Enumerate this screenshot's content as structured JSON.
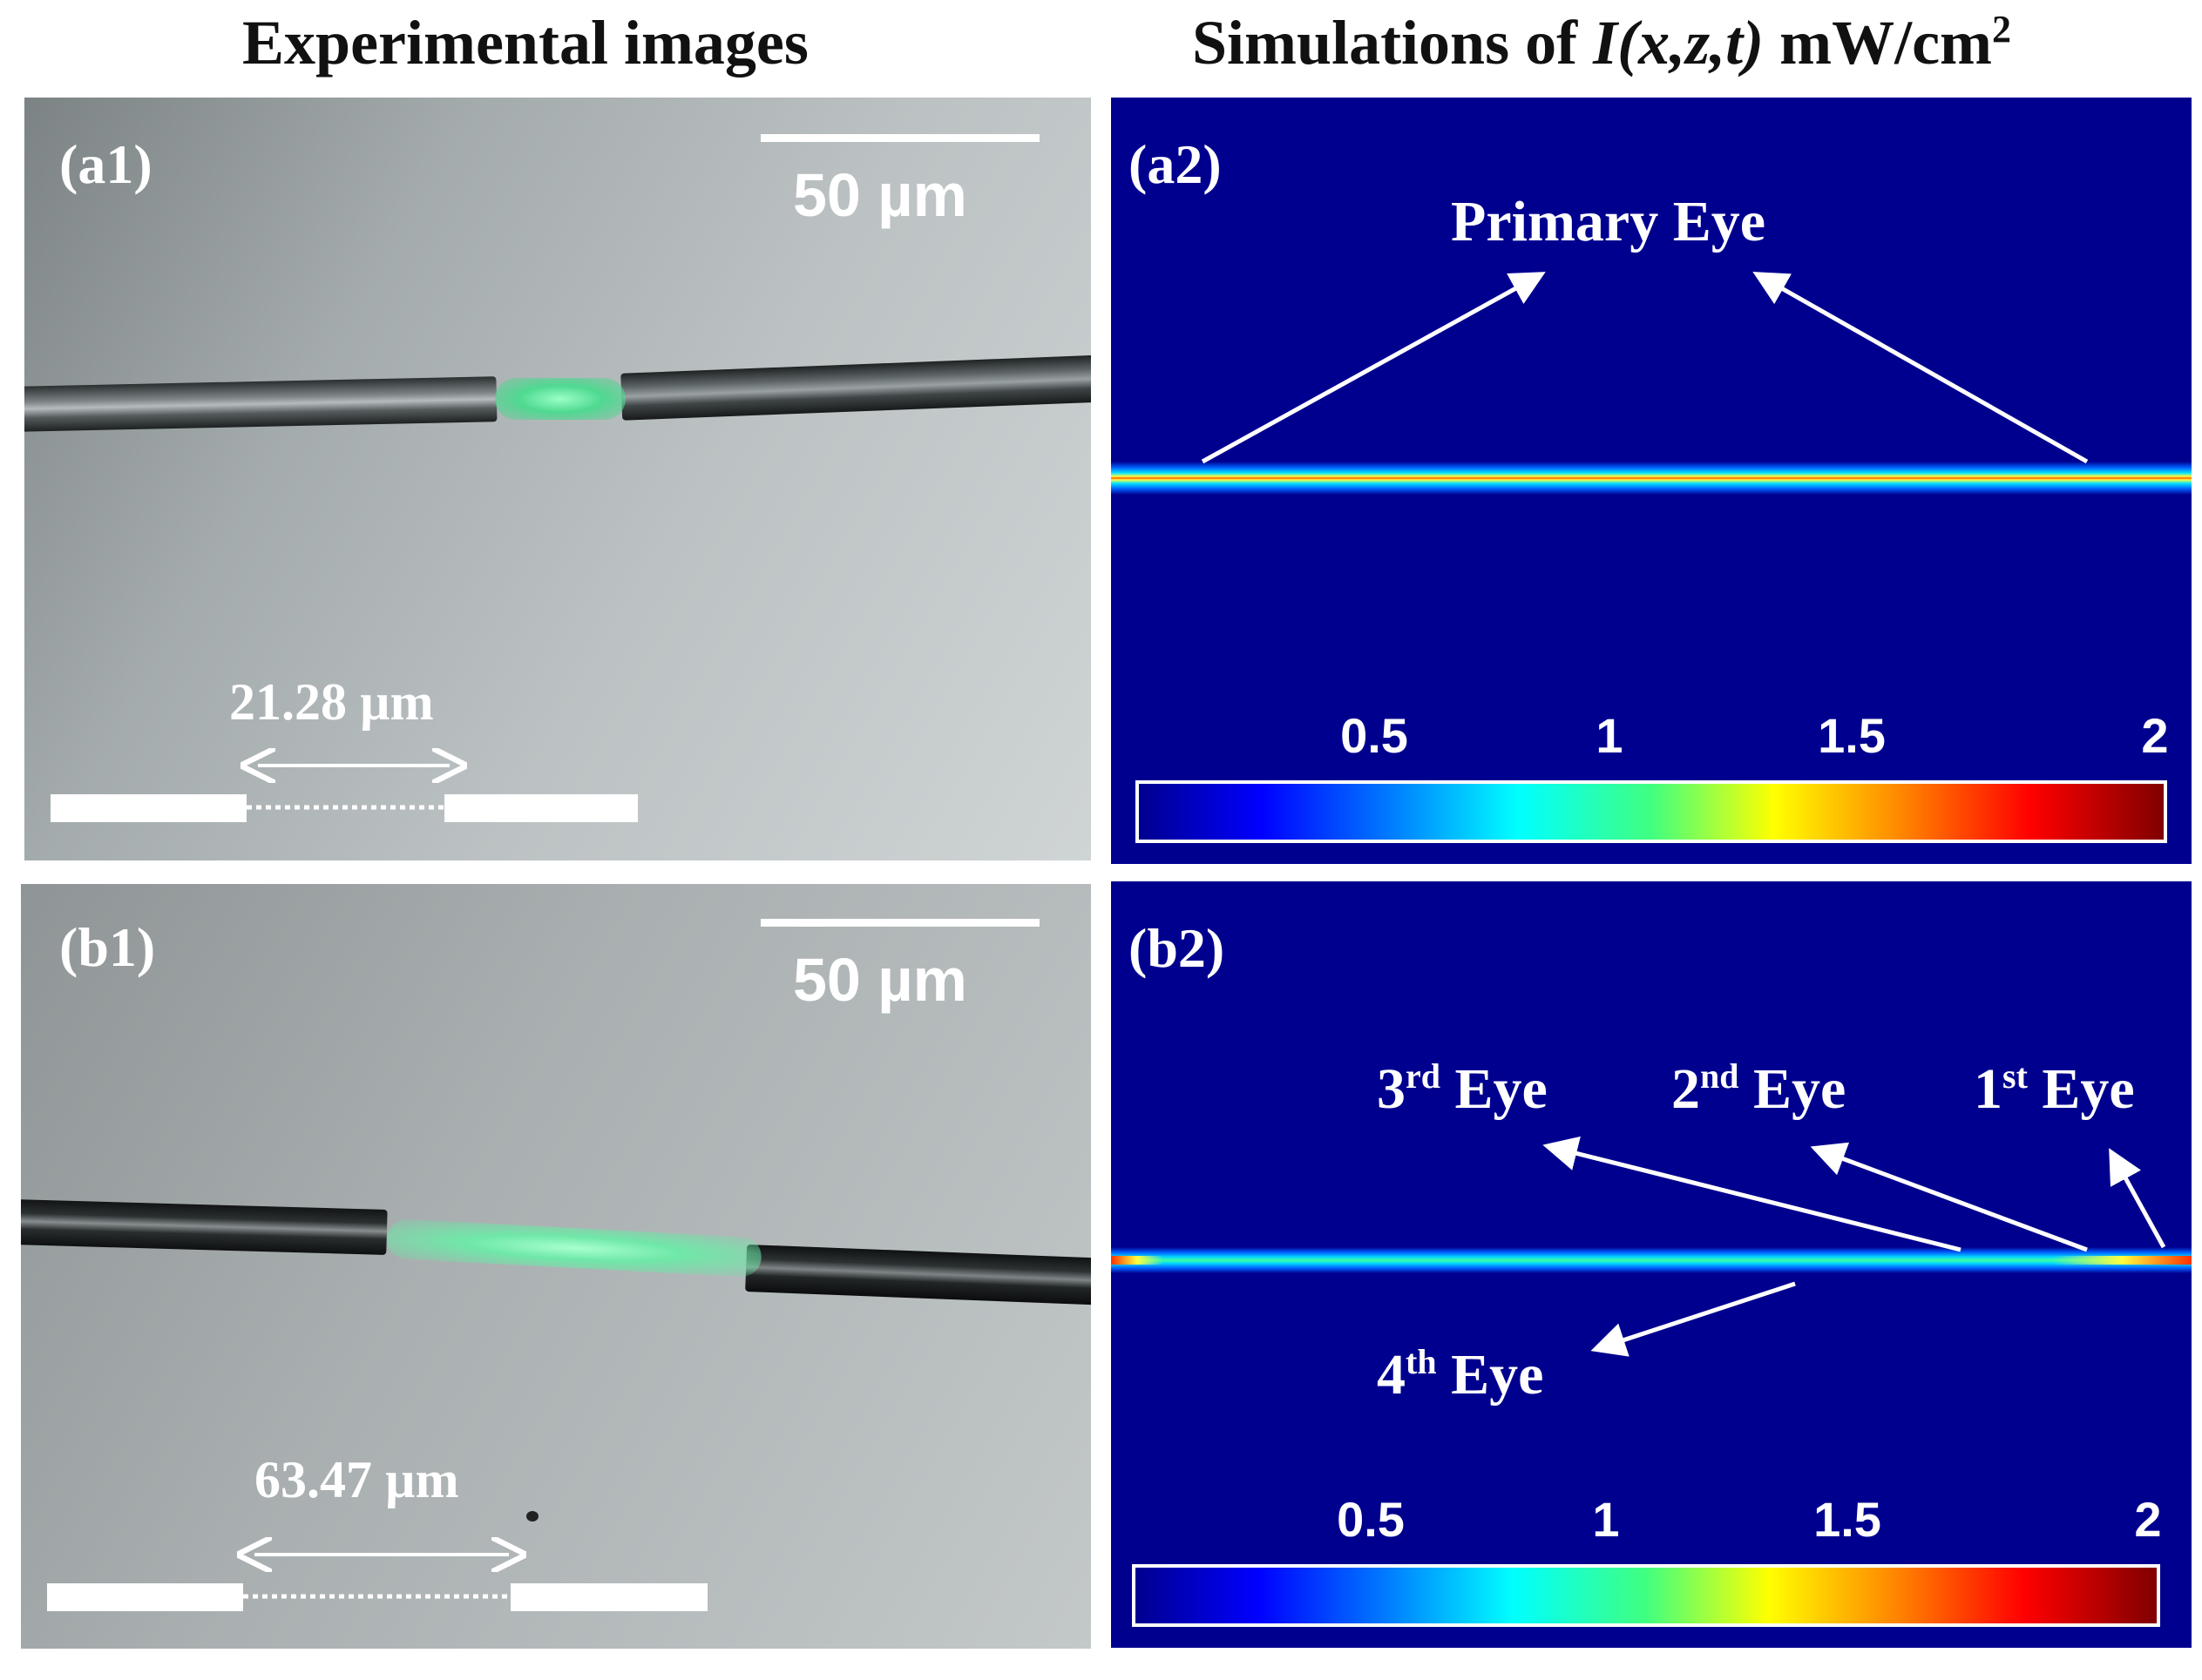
{
  "headers": {
    "left": "Experimental images",
    "right_prefix": "Simulations of ",
    "right_func": "I(x,z,t)",
    "right_unit": " mW/cm",
    "right_unit_sup": "2"
  },
  "panel_a1": {
    "label": "(a1)",
    "scale_text": "50 µm",
    "gap_text": "21.28 µm"
  },
  "panel_b1": {
    "label": "(b1)",
    "scale_text": "50 µm",
    "gap_text": "63.47 µm"
  },
  "panel_a2": {
    "label": "(a2)",
    "annotation": "Primary Eye",
    "colorbar_ticks": [
      "0.5",
      "1",
      "1.5",
      "2"
    ]
  },
  "panel_b2": {
    "label": "(b2)",
    "eyes": [
      {
        "num": "3",
        "sup": "rd",
        "word": " Eye"
      },
      {
        "num": "2",
        "sup": "nd",
        "word": " Eye"
      },
      {
        "num": "1",
        "sup": "st",
        "word": " Eye"
      },
      {
        "num": "4",
        "sup": "th",
        "word": " Eye"
      }
    ],
    "colorbar_ticks": [
      "0.5",
      "1",
      "1.5",
      "2"
    ]
  },
  "colors": {
    "sim_background": "#00008f",
    "beam_green": "#5cf0a0",
    "annotation": "#ffffff"
  }
}
